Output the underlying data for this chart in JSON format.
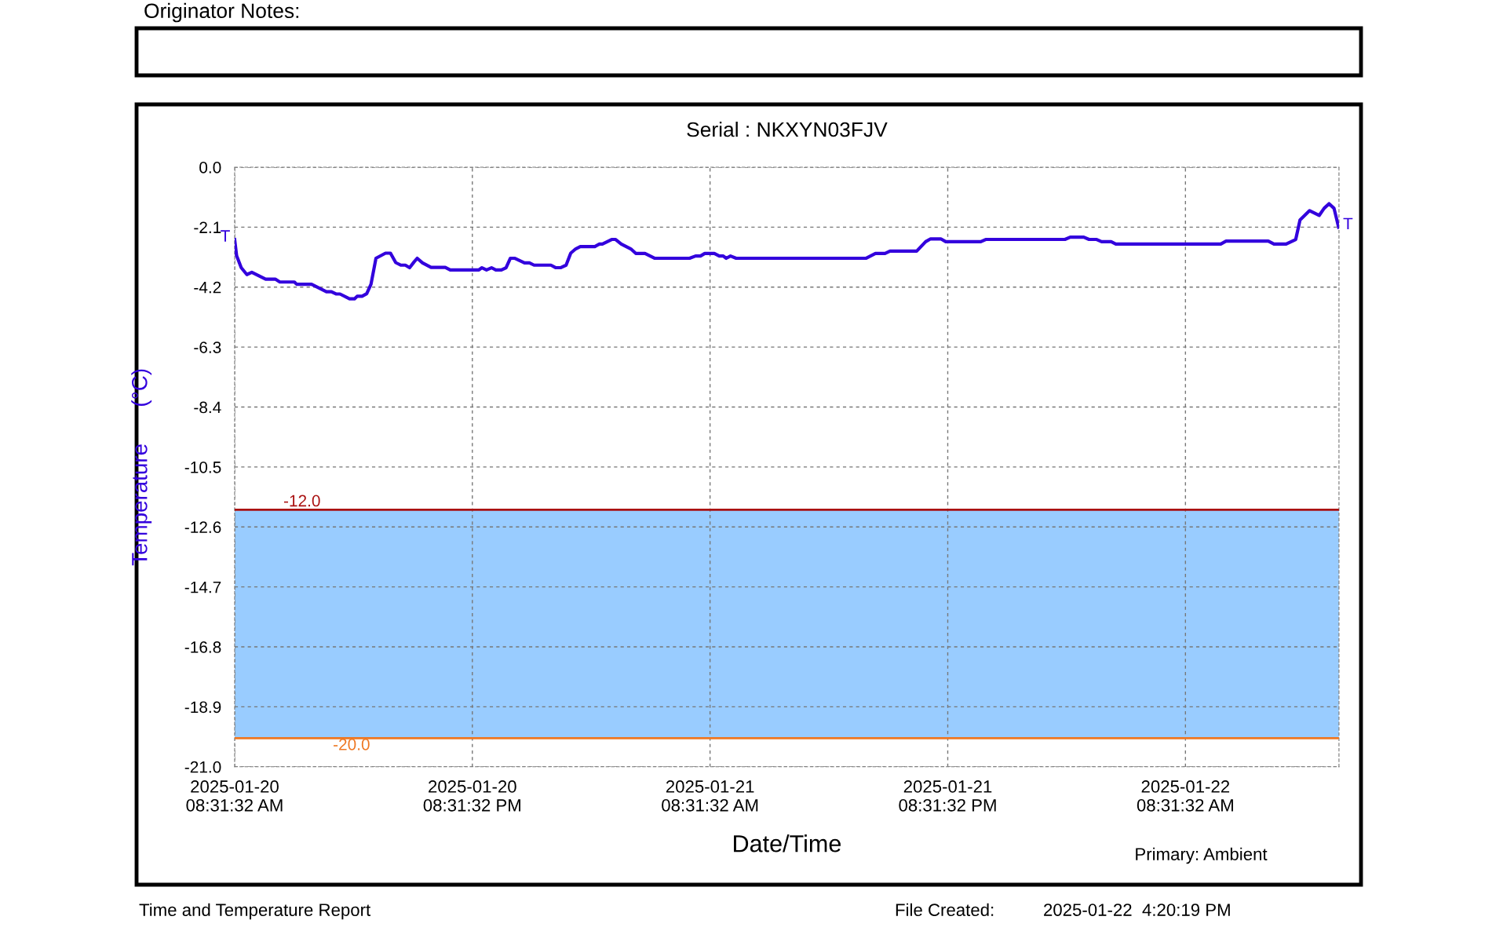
{
  "chart_data": {
    "type": "line",
    "title": "Serial : NKXYN03FJV",
    "xlabel": "Date/Time",
    "ylabel": "Temperature      (°C)",
    "x": [
      "2025-01-20T08:31",
      "2025-01-20T08:37",
      "2025-01-20T08:51",
      "2025-01-20T09:08",
      "2025-01-20T09:23",
      "2025-01-20T10:05",
      "2025-01-20T10:34",
      "2025-01-20T10:48",
      "2025-01-20T11:32",
      "2025-01-20T11:39",
      "2025-01-20T12:24",
      "2025-01-20T13:09",
      "2025-01-20T13:24",
      "2025-01-20T13:38",
      "2025-01-20T13:50",
      "2025-01-20T14:19",
      "2025-01-20T14:34",
      "2025-01-20T14:42",
      "2025-01-20T14:57",
      "2025-01-20T15:11",
      "2025-01-20T15:24",
      "2025-01-20T15:39",
      "2025-01-20T16:08",
      "2025-01-20T16:23",
      "2025-01-20T16:39",
      "2025-01-20T16:54",
      "2025-01-20T17:08",
      "2025-01-20T17:21",
      "2025-01-20T17:35",
      "2025-01-20T17:44",
      "2025-01-20T18:00",
      "2025-01-20T18:26",
      "2025-01-20T19:09",
      "2025-01-20T19:24",
      "2025-01-20T20:50",
      "2025-01-20T21:00",
      "2025-01-20T21:14",
      "2025-01-20T21:29",
      "2025-01-20T21:42",
      "2025-01-20T21:59",
      "2025-01-20T22:13",
      "2025-01-20T22:26",
      "2025-01-20T22:40",
      "2025-01-20T23:09",
      "2025-01-20T23:24",
      "2025-01-20T23:38",
      "2025-01-21T00:29",
      "2025-01-21T00:44",
      "2025-01-21T00:58",
      "2025-01-21T01:15",
      "2025-01-21T01:29",
      "2025-01-21T01:44",
      "2025-01-21T01:58",
      "2025-01-21T02:42",
      "2025-01-21T02:56",
      "2025-01-21T03:05",
      "2025-01-21T03:33",
      "2025-01-21T03:45",
      "2025-01-21T04:02",
      "2025-01-21T04:31",
      "2025-01-21T04:46",
      "2025-01-21T05:14",
      "2025-01-21T05:44",
      "2025-01-21T07:29",
      "2025-01-21T07:47",
      "2025-01-21T08:02",
      "2025-01-21T08:15",
      "2025-01-21T08:44",
      "2025-01-21T08:59",
      "2025-01-21T09:11",
      "2025-01-21T09:20",
      "2025-01-21T09:33",
      "2025-01-21T09:50",
      "2025-01-21T16:23",
      "2025-01-21T16:52",
      "2025-01-21T17:21",
      "2025-01-21T17:36",
      "2025-01-21T18:57",
      "2025-01-21T19:24",
      "2025-01-21T19:39",
      "2025-01-21T20:10",
      "2025-01-21T20:25",
      "2025-01-21T22:11",
      "2025-01-21T22:26",
      "2025-01-22T02:26",
      "2025-01-22T02:42",
      "2025-01-22T03:23",
      "2025-01-22T03:39",
      "2025-01-22T04:02",
      "2025-01-22T04:17",
      "2025-01-22T04:46",
      "2025-01-22T05:00",
      "2025-01-22T10:18",
      "2025-01-22T10:34",
      "2025-01-22T12:42",
      "2025-01-22T12:59",
      "2025-01-22T13:36",
      "2025-01-22T14:05",
      "2025-01-22T14:18",
      "2025-01-22T14:47",
      "2025-01-22T15:16",
      "2025-01-22T15:31",
      "2025-01-22T15:46",
      "2025-01-22T16:01",
      "2025-01-22T16:15"
    ],
    "series": [
      {
        "color": "#3300dd",
        "values": [
          -2.53,
          -3.1,
          -3.52,
          -3.76,
          -3.68,
          -3.92,
          -3.92,
          -4.02,
          -4.02,
          -4.1,
          -4.1,
          -4.36,
          -4.36,
          -4.44,
          -4.44,
          -4.61,
          -4.61,
          -4.52,
          -4.52,
          -4.43,
          -4.1,
          -3.19,
          -3.01,
          -3.01,
          -3.34,
          -3.43,
          -3.43,
          -3.52,
          -3.31,
          -3.19,
          -3.35,
          -3.51,
          -3.51,
          -3.6,
          -3.6,
          -3.52,
          -3.6,
          -3.52,
          -3.6,
          -3.6,
          -3.52,
          -3.19,
          -3.19,
          -3.35,
          -3.35,
          -3.43,
          -3.43,
          -3.52,
          -3.52,
          -3.43,
          -3.01,
          -2.86,
          -2.78,
          -2.78,
          -2.69,
          -2.69,
          -2.53,
          -2.53,
          -2.69,
          -2.86,
          -3.02,
          -3.02,
          -3.19,
          -3.19,
          -3.11,
          -3.11,
          -3.02,
          -3.02,
          -3.11,
          -3.11,
          -3.19,
          -3.11,
          -3.19,
          -3.19,
          -3.02,
          -3.02,
          -2.94,
          -2.94,
          -2.61,
          -2.51,
          -2.51,
          -2.61,
          -2.61,
          -2.53,
          -2.53,
          -2.45,
          -2.45,
          -2.53,
          -2.53,
          -2.61,
          -2.61,
          -2.69,
          -2.69,
          -2.59,
          -2.59,
          -2.69,
          -2.69,
          -2.53,
          -1.85,
          -1.52,
          -1.69,
          -1.44,
          -1.28,
          -1.44,
          -2.1
        ]
      }
    ],
    "xlim": [
      "2025-01-20T08:31",
      "2025-01-22T16:16"
    ],
    "xticks": [
      {
        "value": "2025-01-20T08:31",
        "label": "2025-01-20\n08:31:32 AM"
      },
      {
        "value": "2025-01-20T20:31",
        "label": "2025-01-20\n08:31:32 PM"
      },
      {
        "value": "2025-01-21T08:31",
        "label": "2025-01-21\n08:31:32 AM"
      },
      {
        "value": "2025-01-21T20:31",
        "label": "2025-01-21\n08:31:32 PM"
      },
      {
        "value": "2025-01-22T08:31",
        "label": "2025-01-22\n08:31:32 AM"
      }
    ],
    "ylim": [
      -21.0,
      0.0
    ],
    "yticks": [
      {
        "value": 0.0,
        "label": "0.0"
      },
      {
        "value": -2.1,
        "label": "-2.1"
      },
      {
        "value": -4.2,
        "label": "-4.2"
      },
      {
        "value": -6.3,
        "label": "-6.3"
      },
      {
        "value": -8.4,
        "label": "-8.4"
      },
      {
        "value": -10.5,
        "label": "-10.5"
      },
      {
        "value": -12.6,
        "label": "-12.6"
      },
      {
        "value": -14.7,
        "label": "-14.7"
      },
      {
        "value": -16.8,
        "label": "-16.8"
      },
      {
        "value": -18.9,
        "label": "-18.9"
      },
      {
        "value": -21.0,
        "label": "-21.0"
      }
    ],
    "ref_lines": [
      {
        "axis": "y",
        "value": -12.0,
        "label": "-12.0",
        "color": "#aa1111"
      },
      {
        "axis": "y",
        "value": -20.0,
        "label": "-20.0",
        "color": "#ee7722"
      }
    ],
    "bands": [
      {
        "axis": "y",
        "from": -20.0,
        "to": -12.0,
        "color": "#99ccff"
      }
    ],
    "annotations": [
      {
        "text": "T",
        "x": "2025-01-20T08:31",
        "y": -2.53
      },
      {
        "text": "T",
        "x": "2025-01-22T16:15",
        "y": -2.1
      },
      "Primary: Ambient",
      "Originator Notes:",
      "Time and Temperature Report",
      "File Created:          2025-01-22  4:20:19 PM"
    ],
    "grid": true,
    "line_style": "solid",
    "marker": "none",
    "legend": false
  }
}
